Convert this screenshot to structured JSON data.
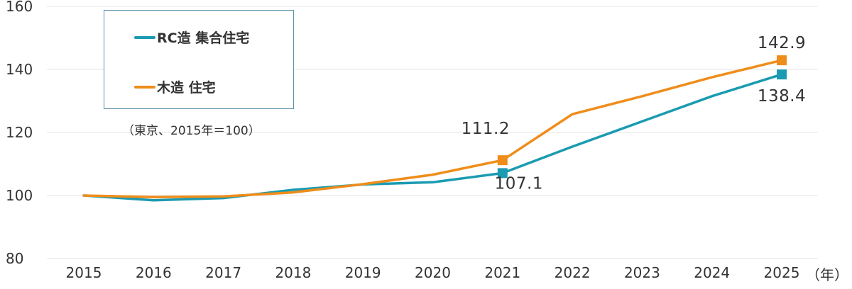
{
  "chart_data": {
    "type": "line",
    "x": [
      "2015",
      "2016",
      "2017",
      "2018",
      "2019",
      "2020",
      "2021",
      "2022",
      "2023",
      "2024",
      "2025"
    ],
    "series": [
      {
        "name": "RC造 集合住宅",
        "color": "#1a9bb1",
        "values": [
          100,
          98.5,
          99.2,
          101.8,
          103.5,
          104.2,
          107.1,
          115.5,
          123.5,
          131.5,
          138.4
        ]
      },
      {
        "name": "木造 住宅",
        "color": "#ef8d1a",
        "values": [
          100,
          99.5,
          99.7,
          101.0,
          103.6,
          106.6,
          111.2,
          125.8,
          131.5,
          137.5,
          142.9
        ]
      }
    ],
    "ylim": [
      80,
      160
    ],
    "yticks": [
      80,
      100,
      120,
      140,
      160
    ],
    "grid": true,
    "legend_position": "top-left",
    "annotations": [
      {
        "series": 1,
        "index": 6,
        "text": "111.2"
      },
      {
        "series": 0,
        "index": 6,
        "text": "107.1"
      },
      {
        "series": 1,
        "index": 10,
        "text": "142.9"
      },
      {
        "series": 0,
        "index": 10,
        "text": "138.4"
      }
    ],
    "note": "（東京、2015年＝100）",
    "x_unit": "（年）"
  }
}
